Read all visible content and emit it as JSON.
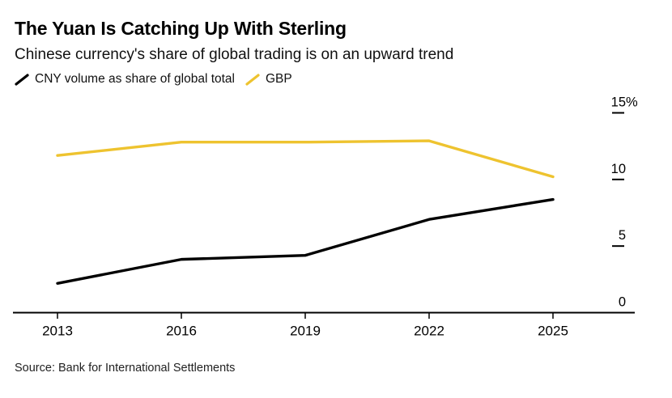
{
  "header": {
    "title": "The Yuan Is Catching Up With Sterling",
    "subtitle": "Chinese currency's share of global trading is on an upward trend"
  },
  "legend": {
    "items": [
      {
        "label": "CNY volume as share of global total",
        "color": "#000000"
      },
      {
        "label": "GBP",
        "color": "#EEC32F"
      }
    ]
  },
  "chart_data": {
    "type": "line",
    "x": [
      2013,
      2016,
      2019,
      2022,
      2025
    ],
    "xtick_labels": [
      "2013",
      "2016",
      "2019",
      "2022",
      "2025"
    ],
    "series": [
      {
        "name": "CNY volume as share of global total",
        "color": "#000000",
        "values": [
          2.2,
          4.0,
          4.3,
          7.0,
          8.5
        ]
      },
      {
        "name": "GBP",
        "color": "#EEC32F",
        "values": [
          11.8,
          12.8,
          12.8,
          12.9,
          10.2
        ]
      }
    ],
    "ylabel": "",
    "xlabel": "",
    "ylim": [
      0,
      15
    ],
    "yticks": [
      0,
      5,
      10,
      15
    ],
    "ytick_labels": [
      "0",
      "5",
      "10",
      "15%"
    ],
    "grid": false,
    "legend_position": "top",
    "y_axis_side": "right"
  },
  "colors": {
    "background": "#ffffff",
    "axis": "#000000",
    "text": "#000000"
  },
  "footer": {
    "source": "Source: Bank for International Settlements"
  }
}
